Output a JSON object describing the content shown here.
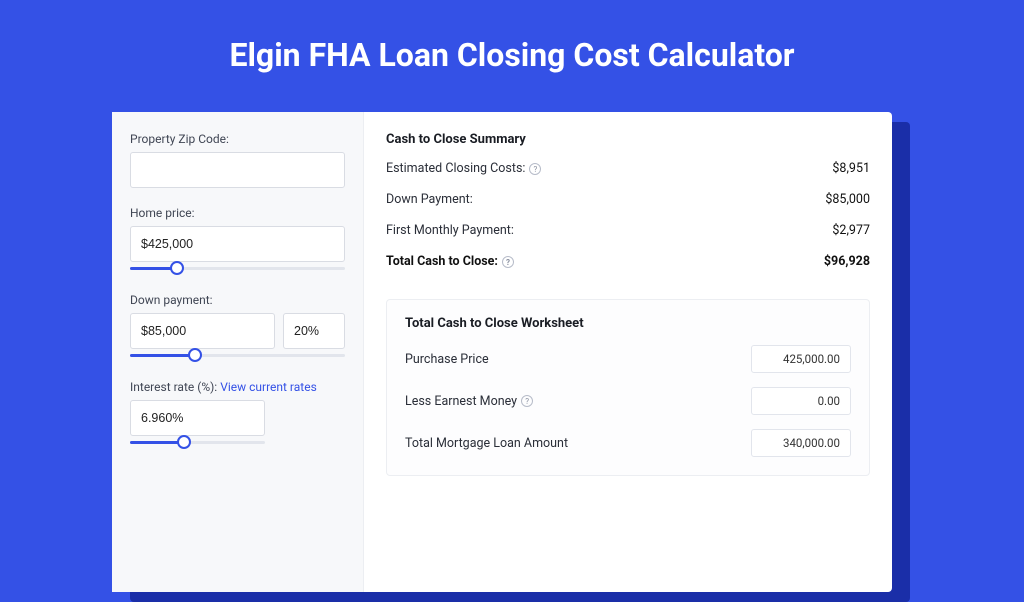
{
  "colors": {
    "page_bg": "#3451e6",
    "shadow": "#1a2ea8",
    "card_bg": "#ffffff",
    "left_bg": "#f7f8fa",
    "border": "#d9dce3",
    "accent": "#3451e6"
  },
  "header": {
    "title": "Elgin FHA Loan Closing Cost Calculator"
  },
  "form": {
    "zip": {
      "label": "Property Zip Code:",
      "value": ""
    },
    "home_price": {
      "label": "Home price:",
      "value": "$425,000",
      "slider_pct": 22
    },
    "down_payment": {
      "label": "Down payment:",
      "value": "$85,000",
      "pct_value": "20%",
      "slider_pct": 30
    },
    "interest_rate": {
      "label": "Interest rate (%):",
      "link_text": "View current rates",
      "value": "6.960%",
      "slider_pct": 40
    }
  },
  "summary": {
    "title": "Cash to Close Summary",
    "rows": [
      {
        "label": "Estimated Closing Costs:",
        "info": true,
        "value": "$8,951",
        "bold": false
      },
      {
        "label": "Down Payment:",
        "info": false,
        "value": "$85,000",
        "bold": false
      },
      {
        "label": "First Monthly Payment:",
        "info": false,
        "value": "$2,977",
        "bold": false
      },
      {
        "label": "Total Cash to Close:",
        "info": true,
        "value": "$96,928",
        "bold": true
      }
    ]
  },
  "worksheet": {
    "title": "Total Cash to Close Worksheet",
    "rows": [
      {
        "label": "Purchase Price",
        "info": false,
        "value": "425,000.00"
      },
      {
        "label": "Less Earnest Money",
        "info": true,
        "value": "0.00"
      },
      {
        "label": "Total Mortgage Loan Amount",
        "info": false,
        "value": "340,000.00"
      }
    ]
  }
}
